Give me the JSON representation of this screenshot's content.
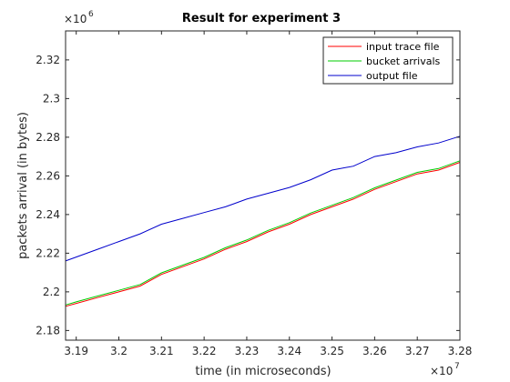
{
  "chart_data": {
    "type": "line",
    "title": "Result for experiment 3",
    "xlabel": "time (in microseconds)",
    "ylabel": "packets arrival (in bytes)",
    "x_multiplier": "×10",
    "x_exponent": "7",
    "y_multiplier": "×10",
    "y_exponent": "6",
    "xlim": [
      3.1875,
      3.28
    ],
    "ylim": [
      2.175,
      2.335
    ],
    "x_ticks": [
      3.19,
      3.2,
      3.21,
      3.22,
      3.23,
      3.24,
      3.25,
      3.26,
      3.27,
      3.28
    ],
    "x_tick_labels": [
      "3.19",
      "3.2",
      "3.21",
      "3.22",
      "3.23",
      "3.24",
      "3.25",
      "3.26",
      "3.27",
      "3.28"
    ],
    "y_ticks": [
      2.18,
      2.2,
      2.22,
      2.24,
      2.26,
      2.28,
      2.3,
      2.32
    ],
    "y_tick_labels": [
      "2.18",
      "2.2",
      "2.22",
      "2.24",
      "2.26",
      "2.28",
      "2.3",
      "2.32"
    ],
    "legend": {
      "position": "top-right"
    },
    "grid": false,
    "series": [
      {
        "name": "input trace file",
        "color": "#ff0000",
        "points": [
          [
            3.1875,
            2.1925
          ],
          [
            3.19,
            2.194
          ],
          [
            3.195,
            2.197
          ],
          [
            3.2,
            2.2
          ],
          [
            3.205,
            2.203
          ],
          [
            3.21,
            2.209
          ],
          [
            3.215,
            2.213
          ],
          [
            3.22,
            2.217
          ],
          [
            3.225,
            2.222
          ],
          [
            3.23,
            2.226
          ],
          [
            3.235,
            2.231
          ],
          [
            3.24,
            2.235
          ],
          [
            3.245,
            2.24
          ],
          [
            3.25,
            2.244
          ],
          [
            3.255,
            2.248
          ],
          [
            3.26,
            2.253
          ],
          [
            3.265,
            2.257
          ],
          [
            3.27,
            2.261
          ],
          [
            3.275,
            2.263
          ],
          [
            3.28,
            2.267
          ]
        ]
      },
      {
        "name": "bucket arrivals",
        "color": "#00cc00",
        "points": [
          [
            3.1875,
            2.1932
          ],
          [
            3.19,
            2.1948
          ],
          [
            3.195,
            2.1978
          ],
          [
            3.2,
            2.2008
          ],
          [
            3.205,
            2.2038
          ],
          [
            3.21,
            2.2098
          ],
          [
            3.215,
            2.2138
          ],
          [
            3.22,
            2.2178
          ],
          [
            3.225,
            2.2228
          ],
          [
            3.23,
            2.2268
          ],
          [
            3.235,
            2.2318
          ],
          [
            3.24,
            2.2358
          ],
          [
            3.245,
            2.2408
          ],
          [
            3.25,
            2.2448
          ],
          [
            3.255,
            2.2488
          ],
          [
            3.26,
            2.2538
          ],
          [
            3.265,
            2.2578
          ],
          [
            3.27,
            2.2618
          ],
          [
            3.275,
            2.2638
          ],
          [
            3.28,
            2.2678
          ]
        ]
      },
      {
        "name": "output file",
        "color": "#0000cc",
        "points": [
          [
            3.1875,
            2.216
          ],
          [
            3.19,
            2.218
          ],
          [
            3.195,
            2.222
          ],
          [
            3.2,
            2.226
          ],
          [
            3.205,
            2.23
          ],
          [
            3.21,
            2.235
          ],
          [
            3.215,
            2.238
          ],
          [
            3.22,
            2.241
          ],
          [
            3.225,
            2.244
          ],
          [
            3.23,
            2.248
          ],
          [
            3.235,
            2.251
          ],
          [
            3.24,
            2.254
          ],
          [
            3.245,
            2.258
          ],
          [
            3.25,
            2.263
          ],
          [
            3.255,
            2.265
          ],
          [
            3.26,
            2.27
          ],
          [
            3.265,
            2.272
          ],
          [
            3.27,
            2.275
          ],
          [
            3.275,
            2.277
          ],
          [
            3.28,
            2.2805
          ]
        ]
      }
    ]
  }
}
